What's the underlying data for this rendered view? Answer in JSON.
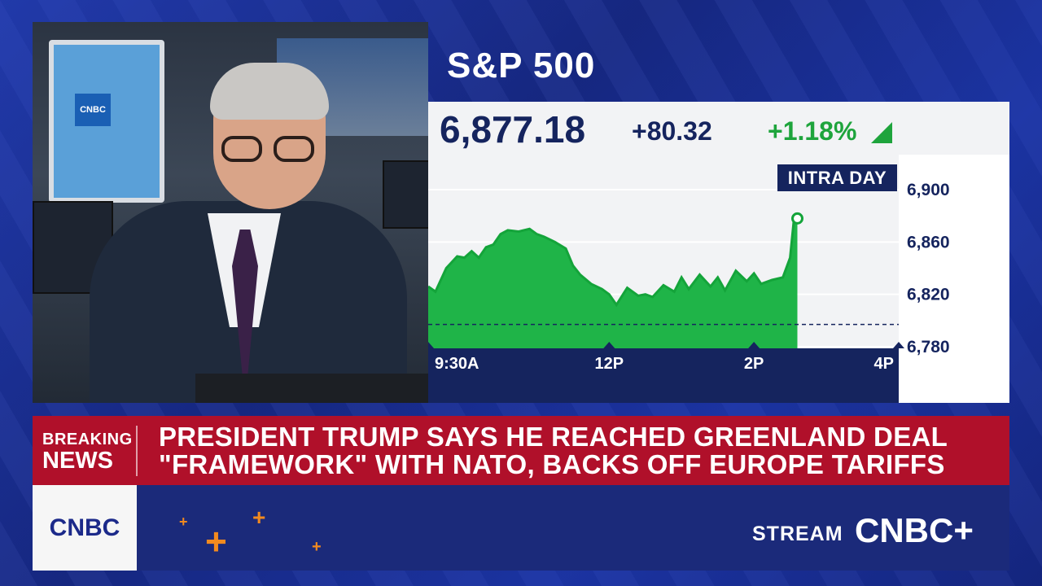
{
  "chart": {
    "title": "S&P 500",
    "price": "6,877.18",
    "change": "+80.32",
    "percent": "+1.18%",
    "range_label": "INTRA DAY",
    "colors": {
      "fill": "#1fb448",
      "line": "#14a43a",
      "up": "#1ea43c",
      "navy": "#15245e"
    }
  },
  "chart_data": {
    "type": "area",
    "x_ticks": [
      "9:30A",
      "12P",
      "2P",
      "4P"
    ],
    "y_ticks": [
      "6,900",
      "6,860",
      "6,820",
      "6,780"
    ],
    "ylim": [
      6780,
      6900
    ],
    "previous_close": 6797,
    "x_hours": [
      9.5,
      9.6,
      9.75,
      9.9,
      10.0,
      10.1,
      10.2,
      10.3,
      10.4,
      10.5,
      10.6,
      10.75,
      10.9,
      11.0,
      11.1,
      11.25,
      11.4,
      11.5,
      11.6,
      11.75,
      11.9,
      12.0,
      12.1,
      12.25,
      12.4,
      12.5,
      12.6,
      12.75,
      12.9,
      13.0,
      13.1,
      13.25,
      13.4,
      13.5,
      13.6,
      13.75,
      13.9,
      14.0,
      14.1,
      14.25,
      14.4,
      14.5,
      14.55,
      14.6
    ],
    "values": [
      6826,
      6822,
      6840,
      6849,
      6848,
      6853,
      6848,
      6856,
      6858,
      6866,
      6869,
      6868,
      6870,
      6866,
      6864,
      6860,
      6855,
      6842,
      6835,
      6828,
      6824,
      6820,
      6812,
      6825,
      6819,
      6820,
      6818,
      6827,
      6822,
      6833,
      6824,
      6835,
      6826,
      6833,
      6823,
      6838,
      6830,
      6836,
      6828,
      6831,
      6833,
      6848,
      6876,
      6878
    ]
  },
  "breaking": {
    "label_line1": "BREAKING",
    "label_line2": "NEWS",
    "headline_line1": "PRESIDENT TRUMP SAYS HE REACHED GREENLAND DEAL",
    "headline_line2": "\"FRAMEWORK\" WITH NATO, BACKS OFF EUROPE TARIFFS"
  },
  "footer": {
    "logo_text": "CNBC",
    "stream_label": "STREAM",
    "stream_brand": "CNBC+"
  },
  "video": {
    "screen_logo": "CNBC"
  }
}
